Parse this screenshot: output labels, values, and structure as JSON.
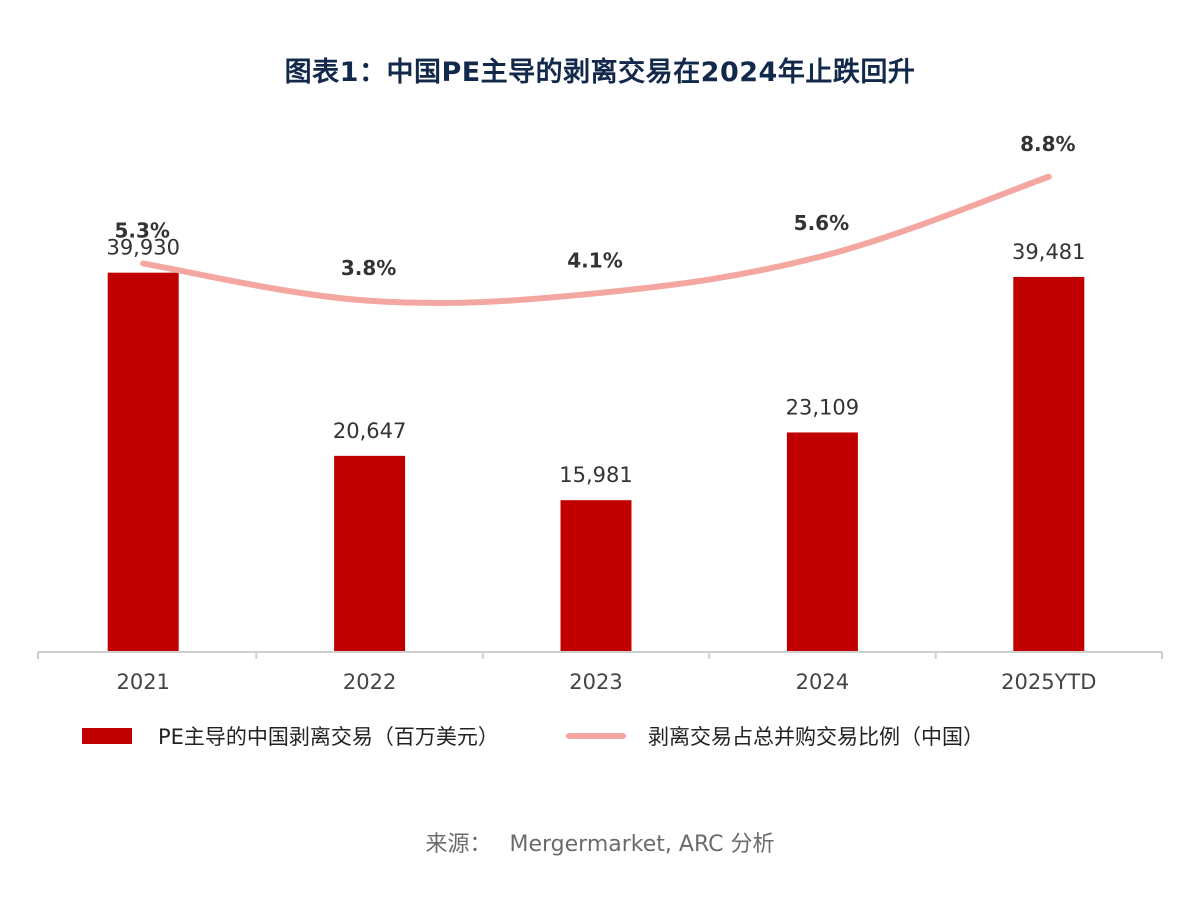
{
  "title": "图表1：中国PE主导的剥离交易在2024年止跌回升",
  "source": {
    "prefix": "来源：",
    "text": "Mergermarket, ARC 分析"
  },
  "colors": {
    "bar": "#c00000",
    "line": "#f4a6a0",
    "axis": "#cfcfcf",
    "tick_text": "#444444",
    "bar_label": "#333333",
    "line_label": "#333333"
  },
  "chart_data": {
    "type": "bar",
    "categories": [
      "2021",
      "2022",
      "2023",
      "2024",
      "2025YTD"
    ],
    "series": [
      {
        "name": "PE主导的中国剥离交易（百万美元）",
        "type": "bar",
        "values": [
          39930,
          20647,
          15981,
          23109,
          39481
        ],
        "labels": [
          "39,930",
          "20,647",
          "15,981",
          "23,109",
          "39,481"
        ]
      },
      {
        "name": "剥离交易占总并购交易比例（中国）",
        "type": "line",
        "values": [
          5.3,
          3.8,
          4.1,
          5.6,
          8.8
        ],
        "labels": [
          "5.3%",
          "3.8%",
          "4.1%",
          "5.6%",
          "8.8%"
        ]
      }
    ],
    "ylim": [
      0,
      40000
    ],
    "ylim_secondary": [
      0,
      9
    ],
    "legend_position": "bottom",
    "grid": false
  }
}
